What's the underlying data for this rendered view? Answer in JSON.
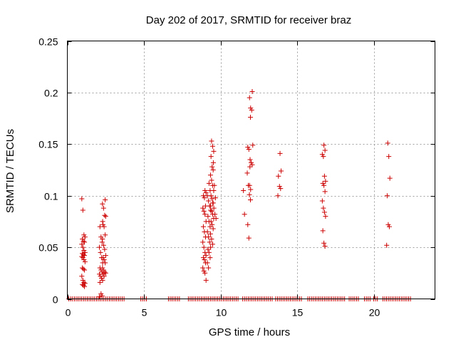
{
  "chart_data": {
    "type": "scatter",
    "title": "Day 202 of 2017, SRMTID for receiver braz",
    "xlabel": "GPS time / hours",
    "ylabel": "SRMTID / TECUs",
    "xlim": [
      0,
      24
    ],
    "ylim": [
      0,
      0.25
    ],
    "xticks": [
      "0",
      "5",
      "10",
      "15",
      "20"
    ],
    "yticks": [
      "0",
      "0.05",
      "0.1",
      "0.15",
      "0.2",
      "0.25"
    ],
    "grid": true,
    "marker": "+",
    "color": "#cc0000",
    "clusters": [
      {
        "x": 1.05,
        "y": [
          0.097,
          0.086,
          0.062,
          0.06,
          0.058,
          0.056,
          0.055,
          0.053,
          0.05,
          0.047,
          0.045,
          0.044,
          0.043,
          0.042,
          0.041,
          0.04,
          0.038,
          0.036,
          0.03,
          0.029,
          0.028,
          0.022,
          0.018,
          0.016,
          0.015,
          0.014,
          0.013,
          0.012
        ]
      },
      {
        "x": 2.2,
        "y": [
          0.075,
          0.07,
          0.06,
          0.055,
          0.05,
          0.045,
          0.04,
          0.035,
          0.03,
          0.028,
          0.026,
          0.024,
          0.022,
          0.02,
          0.018,
          0.016,
          0.005,
          0.003,
          0.002
        ]
      },
      {
        "x": 2.4,
        "y": [
          0.096,
          0.092,
          0.088,
          0.081,
          0.08,
          0.072,
          0.07,
          0.062,
          0.058,
          0.052,
          0.048,
          0.042,
          0.04,
          0.038,
          0.035,
          0.03,
          0.028,
          0.026,
          0.025,
          0.024,
          0.022
        ]
      },
      {
        "x": 8.95,
        "y": [
          0.105,
          0.103,
          0.1,
          0.098,
          0.09,
          0.088,
          0.085,
          0.082,
          0.075,
          0.07,
          0.065,
          0.06,
          0.055,
          0.05,
          0.045,
          0.042,
          0.04,
          0.038,
          0.035,
          0.03,
          0.027,
          0.025,
          0.018
        ]
      },
      {
        "x": 9.25,
        "y": [
          0.112,
          0.105,
          0.1,
          0.095,
          0.09,
          0.086,
          0.08,
          0.075,
          0.07,
          0.065,
          0.06,
          0.055,
          0.05,
          0.048,
          0.045,
          0.04,
          0.035,
          0.03
        ]
      },
      {
        "x": 9.45,
        "y": [
          0.153,
          0.148,
          0.143,
          0.138,
          0.128,
          0.125,
          0.12,
          0.115,
          0.11,
          0.105,
          0.1,
          0.097,
          0.093,
          0.09,
          0.085,
          0.082,
          0.078,
          0.075,
          0.072,
          0.068,
          0.063,
          0.058,
          0.053
        ]
      },
      {
        "x": 9.6,
        "y": [
          0.132,
          0.11,
          0.098,
          0.093,
          0.088,
          0.082,
          0.078
        ]
      },
      {
        "x": 11.6,
        "y": [
          0.105,
          0.082
        ]
      },
      {
        "x": 11.85,
        "y": [
          0.176,
          0.147,
          0.145,
          0.128,
          0.122,
          0.11,
          0.101,
          0.096,
          0.072,
          0.059
        ]
      },
      {
        "x": 12.0,
        "y": [
          0.201,
          0.195,
          0.185,
          0.183,
          0.149,
          0.135,
          0.132,
          0.13,
          0.11,
          0.106
        ]
      },
      {
        "x": 13.85,
        "y": [
          0.141,
          0.124,
          0.119,
          0.109,
          0.107,
          0.1
        ]
      },
      {
        "x": 16.75,
        "y": [
          0.149,
          0.144,
          0.14,
          0.138,
          0.119,
          0.114,
          0.112,
          0.11,
          0.104,
          0.095,
          0.088,
          0.084,
          0.08,
          0.066,
          0.054,
          0.051
        ]
      },
      {
        "x": 20.95,
        "y": [
          0.151,
          0.138,
          0.117,
          0.1,
          0.072,
          0.07,
          0.052
        ]
      }
    ],
    "zero_segments": [
      [
        0.1,
        3.8
      ],
      [
        4.8,
        5.2
      ],
      [
        6.6,
        7.4
      ],
      [
        7.9,
        11.2
      ],
      [
        11.45,
        13.4
      ],
      [
        13.6,
        15.3
      ],
      [
        15.7,
        18.2
      ],
      [
        18.4,
        19.1
      ],
      [
        19.4,
        19.8
      ],
      [
        20.0,
        20.3
      ],
      [
        20.6,
        22.5
      ]
    ],
    "zero_spacing": 0.12
  }
}
